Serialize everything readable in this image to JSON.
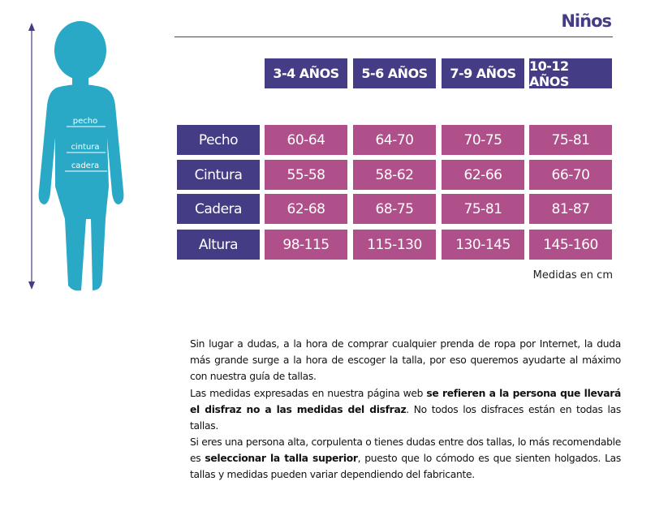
{
  "header": {
    "title": "Niños"
  },
  "figure": {
    "labels": [
      "pecho",
      "cintura",
      "cadera"
    ]
  },
  "table": {
    "columns": [
      "3-4 AÑOS",
      "5-6 AÑOS",
      "7-9 AÑOS",
      "10-12 AÑOS"
    ],
    "rows": [
      [
        "Pecho",
        "60-64",
        "64-70",
        "70-75",
        "75-81"
      ],
      [
        "Cintura",
        "55-58",
        "58-62",
        "62-66",
        "66-70"
      ],
      [
        "Cadera",
        "62-68",
        "68-75",
        "75-81",
        "81-87"
      ],
      [
        "Altura",
        "98-115",
        "115-130",
        "130-145",
        "145-160"
      ]
    ],
    "note": "Medidas en cm"
  },
  "paragraphs": [
    [
      {
        "text": "Sin lugar a dudas, a la hora de comprar cualquier prenda de ropa por Internet, la duda más grande surge a la hora de escoger la talla, por eso queremos ayudarte al máximo con nuestra guía de tallas."
      }
    ],
    [
      {
        "text": "Las medidas expresadas en nuestra página web "
      },
      {
        "text": "se refieren a la persona que llevará el disfraz no a las medidas del disfraz",
        "bold": true
      },
      {
        "text": ". No todos los disfraces están en todas las tallas."
      }
    ],
    [
      {
        "text": "Si eres una persona alta, corpulenta o tienes dudas entre dos tallas, lo más recomendable es "
      },
      {
        "text": "seleccionar la talla superior",
        "bold": true
      },
      {
        "text": ", puesto que lo cómodo es que sienten holgados. Las tallas y medidas pueden variar dependiendo del fabricante."
      }
    ]
  ]
}
